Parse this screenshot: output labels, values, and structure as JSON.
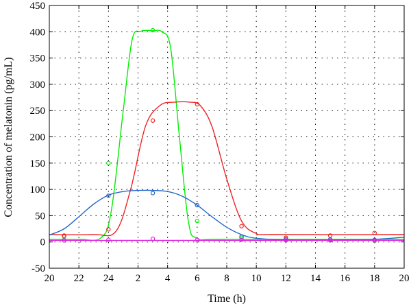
{
  "chart_data": {
    "type": "line",
    "xlabel": "Time (h)",
    "ylabel": "Concentration of melatonin (pg/mL)",
    "x_ticks": [
      "20",
      "22",
      "24",
      "2",
      "4",
      "6",
      "8",
      "10",
      "12",
      "14",
      "16",
      "18",
      "20"
    ],
    "y_ticks": [
      "-50",
      "0",
      "50",
      "100",
      "150",
      "200",
      "250",
      "300",
      "350",
      "400",
      "450"
    ],
    "xlim_hours_elapsed": [
      0,
      24
    ],
    "ylim": [
      -50,
      450
    ],
    "grid": true,
    "legend": "none",
    "series": [
      {
        "color": "#00ee00",
        "points": [
          [
            21,
            10
          ],
          [
            24,
            150
          ],
          [
            3,
            403
          ],
          [
            6,
            40
          ],
          [
            9,
            8
          ],
          [
            12,
            5
          ],
          [
            15,
            3
          ],
          [
            18,
            2
          ]
        ],
        "curve": [
          [
            20,
            5
          ],
          [
            22,
            5
          ],
          [
            23.5,
            8
          ],
          [
            24.2,
            60
          ],
          [
            25,
            250
          ],
          [
            25.6,
            385
          ],
          [
            26.2,
            401
          ],
          [
            27,
            402
          ],
          [
            27.6,
            400
          ],
          [
            28.2,
            370
          ],
          [
            28.8,
            200
          ],
          [
            29.4,
            40
          ],
          [
            30,
            7
          ],
          [
            32,
            5
          ],
          [
            44,
            5
          ]
        ]
      },
      {
        "color": "#ee2222",
        "points": [
          [
            21,
            12
          ],
          [
            24,
            24
          ],
          [
            3,
            231
          ],
          [
            6,
            262
          ],
          [
            9,
            30
          ],
          [
            12,
            8
          ],
          [
            15,
            12
          ],
          [
            18,
            17
          ]
        ],
        "curve": [
          [
            20,
            14
          ],
          [
            23,
            14
          ],
          [
            24.5,
            20
          ],
          [
            25.5,
            100
          ],
          [
            26.5,
            220
          ],
          [
            27.5,
            260
          ],
          [
            28.5,
            266
          ],
          [
            29.5,
            266
          ],
          [
            30.2,
            260
          ],
          [
            31,
            220
          ],
          [
            32,
            120
          ],
          [
            33,
            40
          ],
          [
            34,
            16
          ],
          [
            35,
            14
          ],
          [
            44,
            14
          ]
        ]
      },
      {
        "color": "#2266cc",
        "points": [
          [
            21,
            3
          ],
          [
            24,
            88
          ],
          [
            3,
            93
          ],
          [
            6,
            70
          ],
          [
            9,
            10
          ],
          [
            12,
            5
          ],
          [
            15,
            5
          ],
          [
            18,
            4
          ]
        ],
        "curve": [
          [
            20,
            13
          ],
          [
            21,
            25
          ],
          [
            22,
            48
          ],
          [
            23,
            72
          ],
          [
            24,
            89
          ],
          [
            25,
            96
          ],
          [
            26,
            98
          ],
          [
            27,
            98
          ],
          [
            28,
            96
          ],
          [
            29,
            87
          ],
          [
            30,
            70
          ],
          [
            31,
            48
          ],
          [
            32,
            28
          ],
          [
            33,
            14
          ],
          [
            34,
            7
          ],
          [
            36,
            4
          ],
          [
            40,
            4
          ],
          [
            42,
            5
          ],
          [
            44,
            9
          ]
        ]
      },
      {
        "color": "#dd22dd",
        "points": [
          [
            21,
            3
          ],
          [
            24,
            4
          ],
          [
            3,
            6
          ],
          [
            6,
            4
          ],
          [
            9,
            4
          ],
          [
            12,
            3
          ],
          [
            15,
            3
          ],
          [
            18,
            3
          ]
        ],
        "curve": [
          [
            20,
            3
          ],
          [
            44,
            3
          ]
        ]
      }
    ]
  }
}
